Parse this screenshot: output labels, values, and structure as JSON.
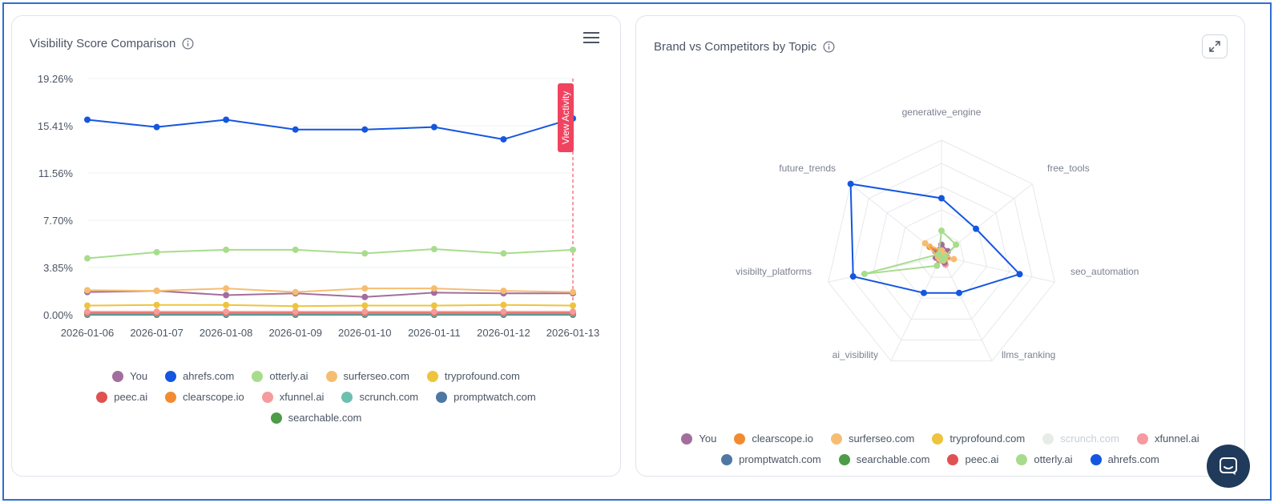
{
  "colors": {
    "You": "#a26e9e",
    "ahrefs.com": "#1456e0",
    "otterly.ai": "#a8dc8d",
    "surferseo.com": "#f6bd72",
    "tryprofound.com": "#eec43d",
    "peec.ai": "#e05252",
    "clearscope.io": "#f28b30",
    "xfunnel.ai": "#f59a9e",
    "scrunch.com": "#6dbfb0",
    "promptwatch.com": "#4e77a3",
    "searchable.com": "#4c9c48"
  },
  "left_panel": {
    "title": "Visibility Score Comparison",
    "info_icon": "info-circle-icon",
    "menu_icon": "hamburger-menu-icon",
    "annotation_label": "View Activity",
    "legend_rows": [
      [
        "You",
        "ahrefs.com",
        "otterly.ai",
        "surferseo.com",
        "tryprofound.com"
      ],
      [
        "peec.ai",
        "clearscope.io",
        "xfunnel.ai",
        "scrunch.com",
        "promptwatch.com"
      ],
      [
        "searchable.com"
      ]
    ]
  },
  "right_panel": {
    "title": "Brand vs Competitors by Topic",
    "info_icon": "info-circle-icon",
    "expand_icon": "expand-arrows-icon",
    "legend_rows": [
      [
        "You",
        "clearscope.io",
        "surferseo.com",
        "tryprofound.com",
        "scrunch.com",
        "xfunnel.ai"
      ],
      [
        "promptwatch.com",
        "searchable.com",
        "peec.ai",
        "otterly.ai",
        "ahrefs.com"
      ]
    ],
    "legend_dimmed": [
      "scrunch.com"
    ]
  },
  "chat_widget": {
    "icon": "chat-bubble-icon"
  },
  "chart_data": [
    {
      "type": "line",
      "title": "Visibility Score Comparison",
      "x": [
        "2026-01-06",
        "2026-01-07",
        "2026-01-08",
        "2026-01-09",
        "2026-01-10",
        "2026-01-11",
        "2026-01-12",
        "2026-01-13"
      ],
      "y_ticks": [
        "19.26%",
        "15.41%",
        "11.56%",
        "7.70%",
        "3.85%",
        "0.00%"
      ],
      "ylim": [
        0,
        19.26
      ],
      "annotation": {
        "label": "View Activity",
        "x": "2026-01-13"
      },
      "series": [
        {
          "name": "ahrefs.com",
          "values": [
            15.9,
            15.3,
            15.9,
            15.1,
            15.1,
            15.3,
            14.3,
            16.0
          ]
        },
        {
          "name": "otterly.ai",
          "values": [
            4.6,
            5.1,
            5.3,
            5.3,
            5.0,
            5.35,
            5.0,
            5.3
          ]
        },
        {
          "name": "surferseo.com",
          "values": [
            2.0,
            1.95,
            2.15,
            1.85,
            2.15,
            2.15,
            1.95,
            1.85
          ]
        },
        {
          "name": "You",
          "values": [
            1.85,
            1.95,
            1.6,
            1.75,
            1.45,
            1.8,
            1.75,
            1.75
          ]
        },
        {
          "name": "tryprofound.com",
          "values": [
            0.75,
            0.8,
            0.8,
            0.7,
            0.75,
            0.75,
            0.8,
            0.75
          ]
        },
        {
          "name": "xfunnel.ai",
          "values": [
            0.25,
            0.25,
            0.25,
            0.25,
            0.25,
            0.25,
            0.25,
            0.25
          ]
        },
        {
          "name": "peec.ai",
          "values": [
            0.2,
            0.2,
            0.2,
            0.2,
            0.2,
            0.2,
            0.2,
            0.2
          ]
        },
        {
          "name": "clearscope.io",
          "values": [
            0.15,
            0.15,
            0.15,
            0.15,
            0.15,
            0.15,
            0.15,
            0.15
          ]
        },
        {
          "name": "scrunch.com",
          "values": [
            0.1,
            0.1,
            0.1,
            0.1,
            0.1,
            0.1,
            0.1,
            0.1
          ]
        },
        {
          "name": "promptwatch.com",
          "values": [
            0.05,
            0.05,
            0.05,
            0.05,
            0.05,
            0.05,
            0.05,
            0.05
          ]
        },
        {
          "name": "searchable.com",
          "values": [
            0.0,
            0.0,
            0.0,
            0.0,
            0.0,
            0.0,
            0.0,
            0.0
          ]
        }
      ],
      "grid": true,
      "legend": "bottom"
    },
    {
      "type": "radar",
      "title": "Brand vs Competitors by Topic",
      "axes": [
        "generative_engine",
        "free_tools",
        "seo_automation",
        "llms_ranking",
        "ai_visibility",
        "visibilty_platforms",
        "future_trends"
      ],
      "rmax": 100,
      "series": [
        {
          "name": "ahrefs.com",
          "values": [
            50,
            38,
            69,
            35,
            35,
            78,
            100
          ]
        },
        {
          "name": "otterly.ai",
          "values": [
            22,
            16,
            3,
            3,
            9,
            68,
            3
          ]
        },
        {
          "name": "surferseo.com",
          "values": [
            5,
            3,
            11,
            4,
            3,
            3,
            18
          ]
        },
        {
          "name": "clearscope.io",
          "values": [
            3,
            3,
            4,
            3,
            3,
            3,
            13
          ]
        },
        {
          "name": "You",
          "values": [
            10,
            7,
            5,
            6,
            4,
            5,
            7
          ]
        },
        {
          "name": "xfunnel.ai",
          "values": [
            4,
            4,
            5,
            8,
            3,
            3,
            3
          ]
        },
        {
          "name": "tryprofound.com",
          "values": [
            3,
            3,
            3,
            3,
            3,
            3,
            3
          ]
        },
        {
          "name": "peec.ai",
          "values": [
            2,
            2,
            2,
            2,
            2,
            2,
            2
          ]
        },
        {
          "name": "promptwatch.com",
          "values": [
            2,
            2,
            2,
            2,
            2,
            2,
            2
          ]
        },
        {
          "name": "searchable.com",
          "values": [
            2,
            2,
            2,
            2,
            2,
            2,
            2
          ]
        }
      ],
      "grid": true,
      "legend": "bottom"
    }
  ]
}
